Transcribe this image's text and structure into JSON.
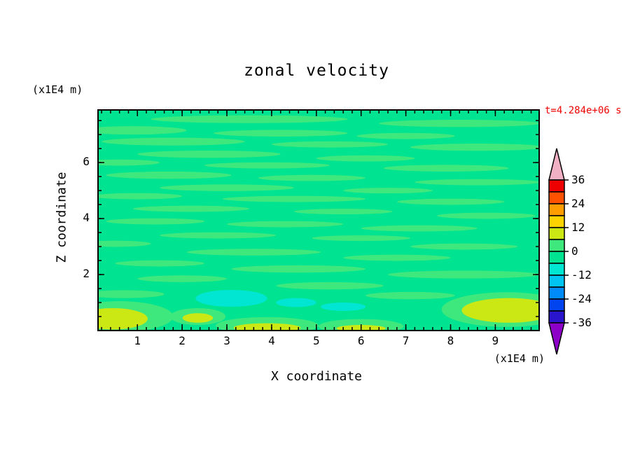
{
  "title": "zonal velocity",
  "time_label": "t=4.284e+06 s",
  "axes": {
    "x_label": "X coordinate",
    "x_unit": "(x1E4 m)",
    "y_label": "Z coordinate",
    "y_unit": "(x1E4 m)",
    "x_ticks": [
      "1",
      "2",
      "3",
      "4",
      "5",
      "6",
      "7",
      "8",
      "9"
    ],
    "y_ticks": [
      "2",
      "4",
      "6"
    ]
  },
  "colors": {
    "background": "#ffffff",
    "frame": "#000000",
    "time_label_color": "#f00000"
  },
  "colorbar": {
    "tick_labels": [
      "36",
      "24",
      "12",
      "0",
      "-12",
      "-24",
      "-36"
    ],
    "bands": [
      {
        "arrow": "up",
        "min": 36,
        "color": "#f2b0c4",
        "label": "over 36"
      },
      {
        "min": 30,
        "max": 36,
        "color": "#ef0000"
      },
      {
        "min": 24,
        "max": 30,
        "color": "#ff5200"
      },
      {
        "min": 18,
        "max": 24,
        "color": "#ff9c00"
      },
      {
        "min": 12,
        "max": 18,
        "color": "#ffd300"
      },
      {
        "min": 6,
        "max": 12,
        "color": "#cce814"
      },
      {
        "min": 0,
        "max": 6,
        "color": "#3fe87d"
      },
      {
        "min": -6,
        "max": 0,
        "color": "#00e391"
      },
      {
        "min": -12,
        "max": -6,
        "color": "#00e6d2"
      },
      {
        "min": -18,
        "max": -12,
        "color": "#00c4f2"
      },
      {
        "min": -24,
        "max": -18,
        "color": "#008cf8"
      },
      {
        "min": -30,
        "max": -24,
        "color": "#0044f0"
      },
      {
        "min": -36,
        "max": -30,
        "color": "#2a14cc"
      },
      {
        "arrow": "down",
        "max": -36,
        "color": "#8c00c8",
        "label": "under -36"
      }
    ]
  },
  "chart_data": {
    "type": "heatmap",
    "title": "zonal velocity",
    "xlabel": "X coordinate (x1E4 m)",
    "ylabel": "Z coordinate (x1E4 m)",
    "time_annotation": "t=4.284e+06 s",
    "x_range": [
      0.12,
      9.98
    ],
    "z_range": [
      0,
      7.88
    ],
    "x_major_ticks": [
      1,
      2,
      3,
      4,
      5,
      6,
      7,
      8,
      9
    ],
    "x_minor_step": 0.2,
    "z_major_ticks": [
      2,
      4,
      6
    ],
    "z_minor_step": 0.5,
    "contour_levels": [
      -36,
      -30,
      -24,
      -18,
      -12,
      -6,
      0,
      6,
      12,
      18,
      24,
      30,
      36
    ],
    "field": {
      "base_band": [
        -6,
        0
      ],
      "base_color": "#00e391",
      "feature_colors": {
        "g2": "#3fe87d",
        "cy": "#00e6d2",
        "yg": "#cce814"
      },
      "feature_bands": {
        "g2": [
          0,
          6
        ],
        "cy": [
          -12,
          -6
        ],
        "yg": [
          6,
          12
        ]
      },
      "features": [
        {
          "x": 3.5,
          "z": 7.55,
          "rx": 2.2,
          "rz": 0.14,
          "c": "g2"
        },
        {
          "x": 8.2,
          "z": 7.4,
          "rx": 1.8,
          "rz": 0.13,
          "c": "g2"
        },
        {
          "x": 0.9,
          "z": 7.15,
          "rx": 1.2,
          "rz": 0.15,
          "c": "g2"
        },
        {
          "x": 4.2,
          "z": 7.05,
          "rx": 1.5,
          "rz": 0.12,
          "c": "g2"
        },
        {
          "x": 7.0,
          "z": 6.95,
          "rx": 1.1,
          "rz": 0.11,
          "c": "g2"
        },
        {
          "x": 1.8,
          "z": 6.75,
          "rx": 1.6,
          "rz": 0.14,
          "c": "g2"
        },
        {
          "x": 5.3,
          "z": 6.65,
          "rx": 1.3,
          "rz": 0.11,
          "c": "g2"
        },
        {
          "x": 8.6,
          "z": 6.55,
          "rx": 1.5,
          "rz": 0.13,
          "c": "g2"
        },
        {
          "x": 2.6,
          "z": 6.3,
          "rx": 1.6,
          "rz": 0.13,
          "c": "g2"
        },
        {
          "x": 6.1,
          "z": 6.15,
          "rx": 1.1,
          "rz": 0.11,
          "c": "g2"
        },
        {
          "x": 0.6,
          "z": 6.0,
          "rx": 0.9,
          "rz": 0.11,
          "c": "g2"
        },
        {
          "x": 3.9,
          "z": 5.9,
          "rx": 1.4,
          "rz": 0.11,
          "c": "g2"
        },
        {
          "x": 7.9,
          "z": 5.8,
          "rx": 1.4,
          "rz": 0.12,
          "c": "g2"
        },
        {
          "x": 1.7,
          "z": 5.55,
          "rx": 1.4,
          "rz": 0.13,
          "c": "g2"
        },
        {
          "x": 4.9,
          "z": 5.45,
          "rx": 1.2,
          "rz": 0.11,
          "c": "g2"
        },
        {
          "x": 8.6,
          "z": 5.3,
          "rx": 1.4,
          "rz": 0.11,
          "c": "g2"
        },
        {
          "x": 3.0,
          "z": 5.1,
          "rx": 1.5,
          "rz": 0.12,
          "c": "g2"
        },
        {
          "x": 6.6,
          "z": 5.0,
          "rx": 1.0,
          "rz": 0.1,
          "c": "g2"
        },
        {
          "x": 1.0,
          "z": 4.8,
          "rx": 1.0,
          "rz": 0.11,
          "c": "g2"
        },
        {
          "x": 4.5,
          "z": 4.7,
          "rx": 1.6,
          "rz": 0.11,
          "c": "g2"
        },
        {
          "x": 8.0,
          "z": 4.6,
          "rx": 1.2,
          "rz": 0.11,
          "c": "g2"
        },
        {
          "x": 2.2,
          "z": 4.35,
          "rx": 1.3,
          "rz": 0.11,
          "c": "g2"
        },
        {
          "x": 5.6,
          "z": 4.25,
          "rx": 1.1,
          "rz": 0.1,
          "c": "g2"
        },
        {
          "x": 8.8,
          "z": 4.1,
          "rx": 1.1,
          "rz": 0.11,
          "c": "g2"
        },
        {
          "x": 1.4,
          "z": 3.9,
          "rx": 1.1,
          "rz": 0.11,
          "c": "g2"
        },
        {
          "x": 4.3,
          "z": 3.8,
          "rx": 1.3,
          "rz": 0.11,
          "c": "g2"
        },
        {
          "x": 7.3,
          "z": 3.65,
          "rx": 1.3,
          "rz": 0.11,
          "c": "g2"
        },
        {
          "x": 2.8,
          "z": 3.4,
          "rx": 1.3,
          "rz": 0.11,
          "c": "g2"
        },
        {
          "x": 6.0,
          "z": 3.3,
          "rx": 1.1,
          "rz": 0.1,
          "c": "g2"
        },
        {
          "x": 0.5,
          "z": 3.1,
          "rx": 0.8,
          "rz": 0.11,
          "c": "g2"
        },
        {
          "x": 8.3,
          "z": 3.0,
          "rx": 1.2,
          "rz": 0.11,
          "c": "g2"
        },
        {
          "x": 3.6,
          "z": 2.8,
          "rx": 1.5,
          "rz": 0.12,
          "c": "g2"
        },
        {
          "x": 6.8,
          "z": 2.6,
          "rx": 1.2,
          "rz": 0.11,
          "c": "g2"
        },
        {
          "x": 1.5,
          "z": 2.4,
          "rx": 1.0,
          "rz": 0.11,
          "c": "g2"
        },
        {
          "x": 4.6,
          "z": 2.2,
          "rx": 1.5,
          "rz": 0.13,
          "c": "g2"
        },
        {
          "x": 8.3,
          "z": 2.0,
          "rx": 1.7,
          "rz": 0.14,
          "c": "g2"
        },
        {
          "x": 2.0,
          "z": 1.85,
          "rx": 1.0,
          "rz": 0.12,
          "c": "g2"
        },
        {
          "x": 5.3,
          "z": 1.6,
          "rx": 1.2,
          "rz": 0.13,
          "c": "g2"
        },
        {
          "x": 0.7,
          "z": 1.3,
          "rx": 0.9,
          "rz": 0.14,
          "c": "g2"
        },
        {
          "x": 7.1,
          "z": 1.25,
          "rx": 1.0,
          "rz": 0.13,
          "c": "g2"
        },
        {
          "x": 0.6,
          "z": 0.5,
          "rx": 1.2,
          "rz": 0.55,
          "c": "g2"
        },
        {
          "x": 9.25,
          "z": 0.75,
          "rx": 1.45,
          "rz": 0.62,
          "c": "g2"
        },
        {
          "x": 3.9,
          "z": 0.18,
          "rx": 1.15,
          "rz": 0.3,
          "c": "g2"
        },
        {
          "x": 6.0,
          "z": 0.15,
          "rx": 0.95,
          "rz": 0.26,
          "c": "g2"
        },
        {
          "x": 2.35,
          "z": 0.5,
          "rx": 0.62,
          "rz": 0.3,
          "c": "g2"
        },
        {
          "x": 3.1,
          "z": 1.15,
          "rx": 0.8,
          "rz": 0.3,
          "c": "cy"
        },
        {
          "x": 4.55,
          "z": 1.0,
          "rx": 0.45,
          "rz": 0.16,
          "c": "cy"
        },
        {
          "x": 5.6,
          "z": 0.85,
          "rx": 0.5,
          "rz": 0.15,
          "c": "cy"
        },
        {
          "x": 0.45,
          "z": 0.42,
          "rx": 0.78,
          "rz": 0.38,
          "c": "yg"
        },
        {
          "x": 9.3,
          "z": 0.72,
          "rx": 1.05,
          "rz": 0.44,
          "c": "yg"
        },
        {
          "x": 3.9,
          "z": 0.1,
          "rx": 0.75,
          "rz": 0.16,
          "c": "yg"
        },
        {
          "x": 6.0,
          "z": 0.08,
          "rx": 0.55,
          "rz": 0.12,
          "c": "yg"
        },
        {
          "x": 2.35,
          "z": 0.45,
          "rx": 0.34,
          "rz": 0.17,
          "c": "yg"
        }
      ]
    }
  }
}
